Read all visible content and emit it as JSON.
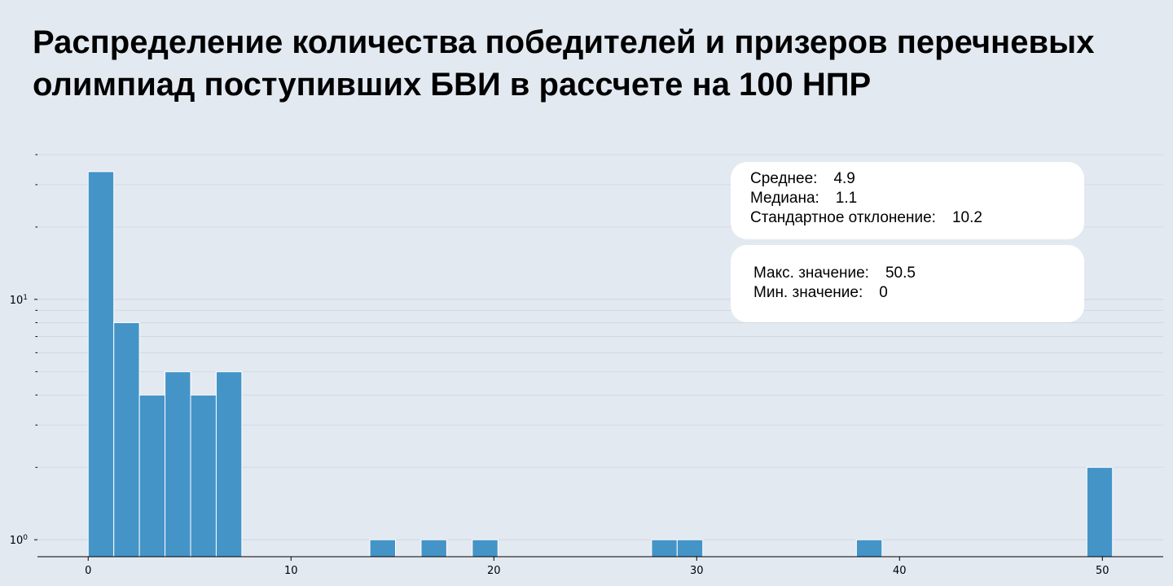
{
  "title": "Распределение количества победителей и призеров перечневых олимпиад поступивших БВИ в рассчете на 100 НПР",
  "stats_box_1": {
    "rows": [
      {
        "label": "Среднее:",
        "value": "4.9"
      },
      {
        "label": "Медиана:",
        "value": "1.1"
      },
      {
        "label": "Стандартное отклонение:",
        "value": "10.2"
      }
    ]
  },
  "stats_box_2": {
    "rows": [
      {
        "label": "Макс. значение:",
        "value": "50.5"
      },
      {
        "label": "Мин. значение:",
        "value": "0"
      }
    ]
  },
  "colors": {
    "background": "#e3e9f1",
    "bar": "#4494c8",
    "bar_edge": "#ffffff",
    "grid": "#cfd6e2",
    "box": "#ffffff"
  },
  "chart_data": {
    "type": "bar",
    "subtype": "histogram",
    "y_scale": "log",
    "xlim": [
      -2.5,
      53
    ],
    "ylim": [
      0.85,
      40
    ],
    "grid": true,
    "xticks": [
      0,
      10,
      20,
      30,
      40,
      50
    ],
    "yticks": [
      {
        "value": 1,
        "label_base": "10",
        "label_exp": "0"
      },
      {
        "value": 10,
        "label_base": "10",
        "label_exp": "1"
      }
    ],
    "bin_width": 1.2625,
    "bins": [
      {
        "start": 0.0,
        "count": 34
      },
      {
        "start": 1.2625,
        "count": 8
      },
      {
        "start": 2.525,
        "count": 4
      },
      {
        "start": 3.7875,
        "count": 5
      },
      {
        "start": 5.05,
        "count": 4
      },
      {
        "start": 6.3125,
        "count": 5
      },
      {
        "start": 13.8875,
        "count": 1
      },
      {
        "start": 16.4125,
        "count": 1
      },
      {
        "start": 18.9375,
        "count": 1
      },
      {
        "start": 27.775,
        "count": 1
      },
      {
        "start": 29.0375,
        "count": 1
      },
      {
        "start": 37.875,
        "count": 1
      },
      {
        "start": 49.2375,
        "count": 2
      }
    ]
  }
}
